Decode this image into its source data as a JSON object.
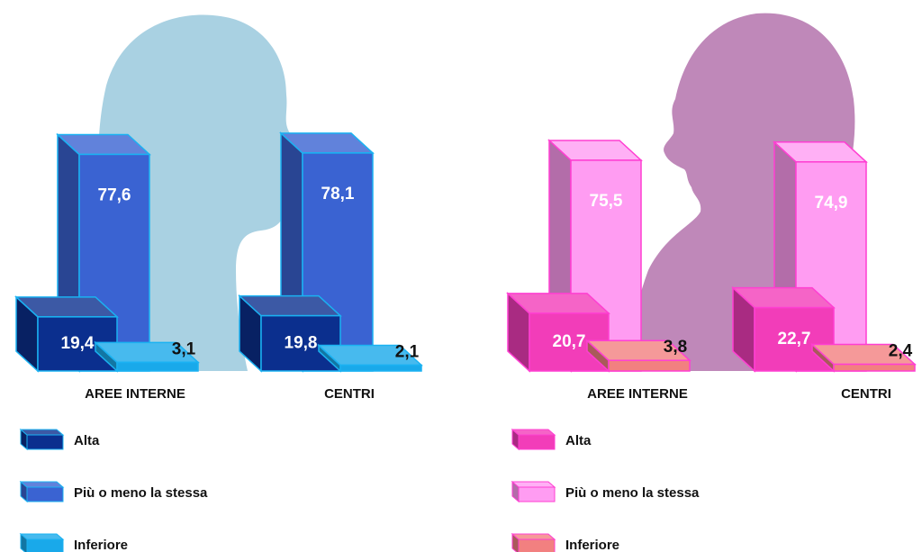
{
  "chart_data": [
    {
      "type": "bar",
      "categories": [
        "AREE INTERNE",
        "CENTRI"
      ],
      "series": [
        {
          "name": "Alta",
          "color": "#0b2f8e",
          "values": [
            19.4,
            19.8
          ],
          "value_labels": [
            "19,4",
            "19,8"
          ]
        },
        {
          "name": "Più o meno la stessa",
          "color": "#3a63d2",
          "values": [
            77.6,
            78.1
          ],
          "value_labels": [
            "77,6",
            "78,1"
          ]
        },
        {
          "name": "Inferiore",
          "color": "#19a9ea",
          "values": [
            3.1,
            2.1
          ],
          "value_labels": [
            "3,1",
            "2,1"
          ]
        }
      ]
    },
    {
      "type": "bar",
      "categories": [
        "AREE INTERNE",
        "CENTRI"
      ],
      "series": [
        {
          "name": "Alta",
          "color": "#f23db9",
          "values": [
            20.7,
            22.7
          ],
          "value_labels": [
            "20,7",
            "22,7"
          ]
        },
        {
          "name": "Più o meno la stessa",
          "color": "#ff9cf2",
          "values": [
            75.5,
            74.9
          ],
          "value_labels": [
            "75,5",
            "74,9"
          ]
        },
        {
          "name": "Inferiore",
          "color": "#f28080",
          "values": [
            3.8,
            2.4
          ],
          "value_labels": [
            "3,8",
            "2,4"
          ]
        }
      ]
    }
  ]
}
